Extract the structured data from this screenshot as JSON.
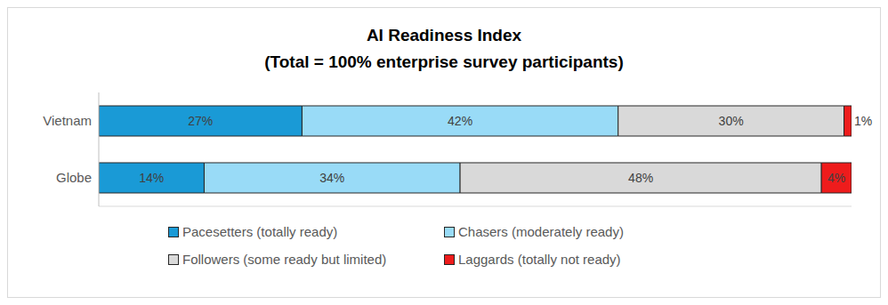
{
  "chart_data": {
    "type": "bar",
    "orientation": "horizontal",
    "stacked": true,
    "title": "AI Readiness Index",
    "subtitle": "(Total = 100% enterprise survey participants)",
    "categories": [
      "Vietnam",
      "Globe"
    ],
    "xlim": [
      0,
      100
    ],
    "data_labels": true,
    "tick_labels": "y",
    "legend": "bottom",
    "series": [
      {
        "name": "Pacesetters (totally ready)",
        "color": "#1a9ad6",
        "values": [
          27,
          14
        ],
        "value_labels": [
          "27%",
          "14%"
        ]
      },
      {
        "name": "Chasers (moderately ready)",
        "color": "#99dbf7",
        "values": [
          42,
          34
        ],
        "value_labels": [
          "42%",
          "34%"
        ]
      },
      {
        "name": "Followers (some ready but limited)",
        "color": "#d9d9d9",
        "values": [
          30,
          48
        ],
        "value_labels": [
          "30%",
          "48%"
        ]
      },
      {
        "name": "Laggards (totally not ready)",
        "color": "#ee1c1c",
        "values": [
          1,
          4
        ],
        "value_labels": [
          "1%",
          "4%"
        ]
      }
    ]
  }
}
